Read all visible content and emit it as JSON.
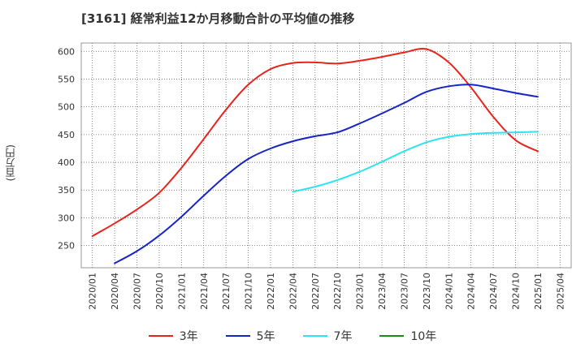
{
  "chart_data": {
    "type": "line",
    "title": "[3161]  経常利益12か月移動合計の平均値の推移",
    "ylabel": "(百万円)",
    "xlabel": "",
    "ylim": [
      210,
      615
    ],
    "yticks": [
      250,
      300,
      350,
      400,
      450,
      500,
      550,
      600
    ],
    "grid": true,
    "legend_position": "bottom",
    "x_tick_labels": [
      "2020/01",
      "2020/04",
      "2020/07",
      "2020/10",
      "2021/01",
      "2021/04",
      "2021/07",
      "2021/10",
      "2022/01",
      "2022/04",
      "2022/07",
      "2022/10",
      "2023/01",
      "2023/04",
      "2023/07",
      "2023/10",
      "2024/01",
      "2024/04",
      "2024/07",
      "2024/10",
      "2025/01",
      "2025/04"
    ],
    "x_months": [
      "2020/01",
      "2020/04",
      "2020/07",
      "2020/10",
      "2021/01",
      "2021/04",
      "2021/07",
      "2021/10",
      "2022/01",
      "2022/04",
      "2022/07",
      "2022/10",
      "2023/01",
      "2023/04",
      "2023/07",
      "2023/10",
      "2024/01",
      "2024/04",
      "2024/07",
      "2024/10",
      "2025/01"
    ],
    "series": [
      {
        "name": "3年",
        "color": "#e8231c",
        "values": [
          267,
          290,
          315,
          345,
          390,
          442,
          495,
          540,
          568,
          579,
          580,
          578,
          583,
          590,
          598,
          604,
          580,
          535,
          482,
          440,
          420
        ]
      },
      {
        "name": "5年",
        "color": "#1624c8",
        "values": [
          null,
          218,
          240,
          268,
          302,
          340,
          376,
          406,
          425,
          438,
          447,
          454,
          470,
          488,
          507,
          527,
          537,
          540,
          533,
          525,
          518
        ]
      },
      {
        "name": "7年",
        "color": "#2ee3f0",
        "values": [
          null,
          null,
          null,
          null,
          null,
          null,
          null,
          null,
          null,
          347,
          356,
          368,
          383,
          401,
          420,
          436,
          446,
          451,
          453,
          454,
          455
        ]
      },
      {
        "name": "10年",
        "color": "#1a8a1a",
        "values": [
          null,
          null,
          null,
          null,
          null,
          null,
          null,
          null,
          null,
          null,
          null,
          null,
          null,
          null,
          null,
          null,
          null,
          null,
          null,
          null,
          null
        ]
      }
    ]
  }
}
